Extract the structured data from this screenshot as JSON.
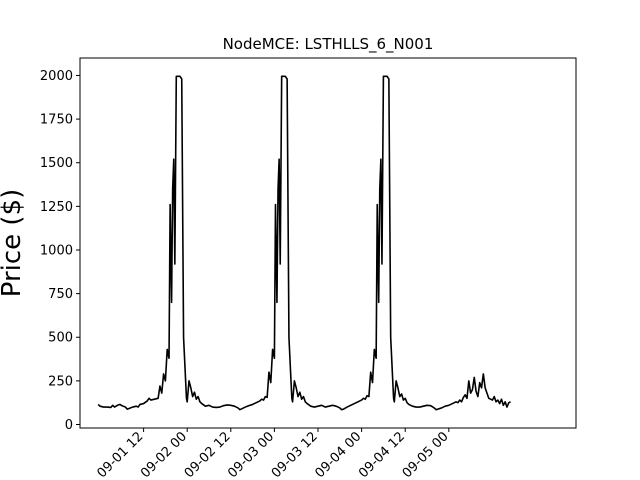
{
  "chart_data": {
    "type": "line",
    "title": "NodeMCE: LSTHLLS_6_N001",
    "xlabel": "",
    "ylabel": "Price ($)",
    "x_unit": "hours since 2020-09-01 00",
    "xlim": [
      -5.5,
      131
    ],
    "ylim": [
      -20,
      2100
    ],
    "grid": false,
    "x_ticks": [
      {
        "value": 12,
        "label": "09-01 12"
      },
      {
        "value": 24,
        "label": "09-02 00"
      },
      {
        "value": 36,
        "label": "09-02 12"
      },
      {
        "value": 48,
        "label": "09-03 00"
      },
      {
        "value": 60,
        "label": "09-03 12"
      },
      {
        "value": 72,
        "label": "09-04 00"
      },
      {
        "value": 84,
        "label": "09-04 12"
      },
      {
        "value": 96,
        "label": "09-05 00"
      }
    ],
    "y_ticks": [
      0,
      250,
      500,
      750,
      1000,
      1250,
      1500,
      1750,
      2000
    ],
    "series": [
      {
        "color": "#000000",
        "points": [
          [
            -0.5,
            115
          ],
          [
            0,
            105
          ],
          [
            1,
            100
          ],
          [
            2,
            100
          ],
          [
            3,
            98
          ],
          [
            3.5,
            110
          ],
          [
            4,
            100
          ],
          [
            5,
            112
          ],
          [
            5.5,
            115
          ],
          [
            6,
            108
          ],
          [
            7,
            100
          ],
          [
            7.5,
            88
          ],
          [
            8,
            92
          ],
          [
            9,
            100
          ],
          [
            10,
            105
          ],
          [
            10.5,
            100
          ],
          [
            11,
            115
          ],
          [
            12,
            120
          ],
          [
            13,
            135
          ],
          [
            13.5,
            150
          ],
          [
            14,
            140
          ],
          [
            15,
            145
          ],
          [
            16,
            150
          ],
          [
            16.5,
            220
          ],
          [
            17,
            180
          ],
          [
            17.5,
            290
          ],
          [
            18,
            250
          ],
          [
            18.5,
            430
          ],
          [
            19,
            380
          ],
          [
            19.3,
            1260
          ],
          [
            19.7,
            700
          ],
          [
            20,
            1350
          ],
          [
            20.3,
            1520
          ],
          [
            20.6,
            920
          ],
          [
            21,
            1995
          ],
          [
            22,
            1995
          ],
          [
            22.5,
            1980
          ],
          [
            23,
            500
          ],
          [
            23.5,
            280
          ],
          [
            23.8,
            150
          ],
          [
            24,
            130
          ],
          [
            24.5,
            250
          ],
          [
            25,
            210
          ],
          [
            25.5,
            160
          ],
          [
            26,
            185
          ],
          [
            26.5,
            145
          ],
          [
            27,
            160
          ],
          [
            27.5,
            130
          ],
          [
            28,
            120
          ],
          [
            29,
            105
          ],
          [
            30,
            110
          ],
          [
            31,
            100
          ],
          [
            32,
            98
          ],
          [
            33,
            100
          ],
          [
            34,
            108
          ],
          [
            35,
            112
          ],
          [
            36,
            110
          ],
          [
            37,
            105
          ],
          [
            38,
            95
          ],
          [
            38.5,
            85
          ],
          [
            39,
            90
          ],
          [
            40,
            100
          ],
          [
            41,
            108
          ],
          [
            42,
            115
          ],
          [
            43,
            125
          ],
          [
            44,
            135
          ],
          [
            44.5,
            145
          ],
          [
            45,
            140
          ],
          [
            45.5,
            160
          ],
          [
            46,
            155
          ],
          [
            46.5,
            300
          ],
          [
            47,
            240
          ],
          [
            47.5,
            430
          ],
          [
            48,
            380
          ],
          [
            48.3,
            1260
          ],
          [
            48.7,
            700
          ],
          [
            49,
            1350
          ],
          [
            49.3,
            1520
          ],
          [
            49.6,
            920
          ],
          [
            50,
            1995
          ],
          [
            51,
            1995
          ],
          [
            51.5,
            1980
          ],
          [
            52,
            500
          ],
          [
            52.5,
            280
          ],
          [
            52.8,
            150
          ],
          [
            53,
            130
          ],
          [
            53.5,
            250
          ],
          [
            54,
            210
          ],
          [
            54.5,
            160
          ],
          [
            55,
            185
          ],
          [
            55.5,
            145
          ],
          [
            56,
            160
          ],
          [
            56.5,
            130
          ],
          [
            57,
            120
          ],
          [
            58,
            105
          ],
          [
            59,
            100
          ],
          [
            60,
            105
          ],
          [
            61,
            110
          ],
          [
            62,
            100
          ],
          [
            63,
            105
          ],
          [
            64,
            110
          ],
          [
            65,
            105
          ],
          [
            66,
            95
          ],
          [
            66.5,
            85
          ],
          [
            67,
            88
          ],
          [
            68,
            100
          ],
          [
            69,
            110
          ],
          [
            70,
            120
          ],
          [
            71,
            130
          ],
          [
            72,
            140
          ],
          [
            72.5,
            150
          ],
          [
            73,
            145
          ],
          [
            73.5,
            165
          ],
          [
            74,
            160
          ],
          [
            74.5,
            300
          ],
          [
            75,
            240
          ],
          [
            75.5,
            430
          ],
          [
            76,
            380
          ],
          [
            76.3,
            1260
          ],
          [
            76.7,
            700
          ],
          [
            77,
            1350
          ],
          [
            77.3,
            1520
          ],
          [
            77.6,
            920
          ],
          [
            78,
            1995
          ],
          [
            79,
            1995
          ],
          [
            79.5,
            1980
          ],
          [
            80,
            500
          ],
          [
            80.5,
            280
          ],
          [
            80.8,
            150
          ],
          [
            81,
            130
          ],
          [
            81.5,
            250
          ],
          [
            82,
            210
          ],
          [
            82.5,
            160
          ],
          [
            83,
            175
          ],
          [
            83.5,
            140
          ],
          [
            84,
            150
          ],
          [
            84.5,
            125
          ],
          [
            85,
            115
          ],
          [
            86,
            105
          ],
          [
            87,
            100
          ],
          [
            88,
            100
          ],
          [
            89,
            105
          ],
          [
            90,
            110
          ],
          [
            91,
            108
          ],
          [
            92,
            95
          ],
          [
            92.5,
            85
          ],
          [
            93,
            88
          ],
          [
            94,
            95
          ],
          [
            95,
            105
          ],
          [
            96,
            110
          ],
          [
            97,
            120
          ],
          [
            98,
            130
          ],
          [
            98.5,
            125
          ],
          [
            99,
            140
          ],
          [
            99.5,
            130
          ],
          [
            100,
            155
          ],
          [
            100.5,
            170
          ],
          [
            101,
            150
          ],
          [
            101.5,
            250
          ],
          [
            102,
            180
          ],
          [
            102.5,
            200
          ],
          [
            103,
            270
          ],
          [
            103.5,
            190
          ],
          [
            104,
            160
          ],
          [
            104.5,
            240
          ],
          [
            105,
            210
          ],
          [
            105.5,
            290
          ],
          [
            106,
            210
          ],
          [
            106.5,
            180
          ],
          [
            107,
            150
          ],
          [
            108,
            140
          ],
          [
            108.5,
            160
          ],
          [
            109,
            130
          ],
          [
            109.5,
            140
          ],
          [
            110,
            120
          ],
          [
            110.5,
            145
          ],
          [
            111,
            110
          ],
          [
            111.5,
            130
          ],
          [
            112,
            100
          ],
          [
            112.5,
            125
          ],
          [
            113,
            130
          ]
        ]
      }
    ]
  }
}
